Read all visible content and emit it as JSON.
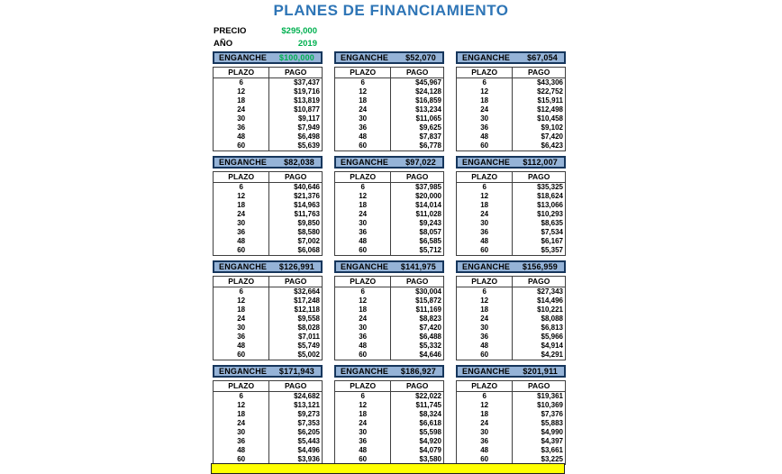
{
  "title": "PLANES DE FINANCIAMIENTO",
  "info": {
    "precio_label": "PRECIO",
    "precio_value": "$295,000",
    "ano_label": "AÑO",
    "ano_value": "2019"
  },
  "labels": {
    "enganche": "ENGANCHE",
    "plazo": "PLAZO",
    "pago": "PAGO"
  },
  "colors": {
    "title_blue": "#2E75B6",
    "green": "#00B050",
    "header_fill": "#95B3D7",
    "header_border": "#16365C",
    "table_border": "#3F3F3F",
    "yellow": "#FFFF00",
    "text": "#000000"
  },
  "plazos": [
    "6",
    "12",
    "18",
    "24",
    "30",
    "36",
    "48",
    "60"
  ],
  "tables": [
    {
      "enganche": "$100,000",
      "value_color": "#00B050",
      "pagos": [
        "$37,437",
        "$19,716",
        "$13,819",
        "$10,877",
        "$9,117",
        "$7,949",
        "$6,498",
        "$5,639"
      ]
    },
    {
      "enganche": "$52,070",
      "value_color": "#000000",
      "pagos": [
        "$45,967",
        "$24,128",
        "$16,859",
        "$13,234",
        "$11,065",
        "$9,625",
        "$7,837",
        "$6,778"
      ]
    },
    {
      "enganche": "$67,054",
      "value_color": "#000000",
      "pagos": [
        "$43,306",
        "$22,752",
        "$15,911",
        "$12,498",
        "$10,458",
        "$9,102",
        "$7,420",
        "$6,423"
      ]
    },
    {
      "enganche": "$82,038",
      "value_color": "#000000",
      "pagos": [
        "$40,646",
        "$21,376",
        "$14,963",
        "$11,763",
        "$9,850",
        "$8,580",
        "$7,002",
        "$6,068"
      ]
    },
    {
      "enganche": "$97,022",
      "value_color": "#000000",
      "pagos": [
        "$37,985",
        "$20,000",
        "$14,014",
        "$11,028",
        "$9,243",
        "$8,057",
        "$6,585",
        "$5,712"
      ]
    },
    {
      "enganche": "$112,007",
      "value_color": "#000000",
      "pagos": [
        "$35,325",
        "$18,624",
        "$13,066",
        "$10,293",
        "$8,635",
        "$7,534",
        "$6,167",
        "$5,357"
      ]
    },
    {
      "enganche": "$126,991",
      "value_color": "#000000",
      "pagos": [
        "$32,664",
        "$17,248",
        "$12,118",
        "$9,558",
        "$8,028",
        "$7,011",
        "$5,749",
        "$5,002"
      ]
    },
    {
      "enganche": "$141,975",
      "value_color": "#000000",
      "pagos": [
        "$30,004",
        "$15,872",
        "$11,169",
        "$8,823",
        "$7,420",
        "$6,488",
        "$5,332",
        "$4,646"
      ]
    },
    {
      "enganche": "$156,959",
      "value_color": "#000000",
      "pagos": [
        "$27,343",
        "$14,496",
        "$10,221",
        "$8,088",
        "$6,813",
        "$5,966",
        "$4,914",
        "$4,291"
      ]
    },
    {
      "enganche": "$171,943",
      "value_color": "#000000",
      "pagos": [
        "$24,682",
        "$13,121",
        "$9,273",
        "$7,353",
        "$6,205",
        "$5,443",
        "$4,496",
        "$3,936"
      ]
    },
    {
      "enganche": "$186,927",
      "value_color": "#000000",
      "pagos": [
        "$22,022",
        "$11,745",
        "$8,324",
        "$6,618",
        "$5,598",
        "$4,920",
        "$4,079",
        "$3,580"
      ]
    },
    {
      "enganche": "$201,911",
      "value_color": "#000000",
      "pagos": [
        "$19,361",
        "$10,369",
        "$7,376",
        "$5,883",
        "$4,990",
        "$4,397",
        "$3,661",
        "$3,225"
      ]
    }
  ]
}
